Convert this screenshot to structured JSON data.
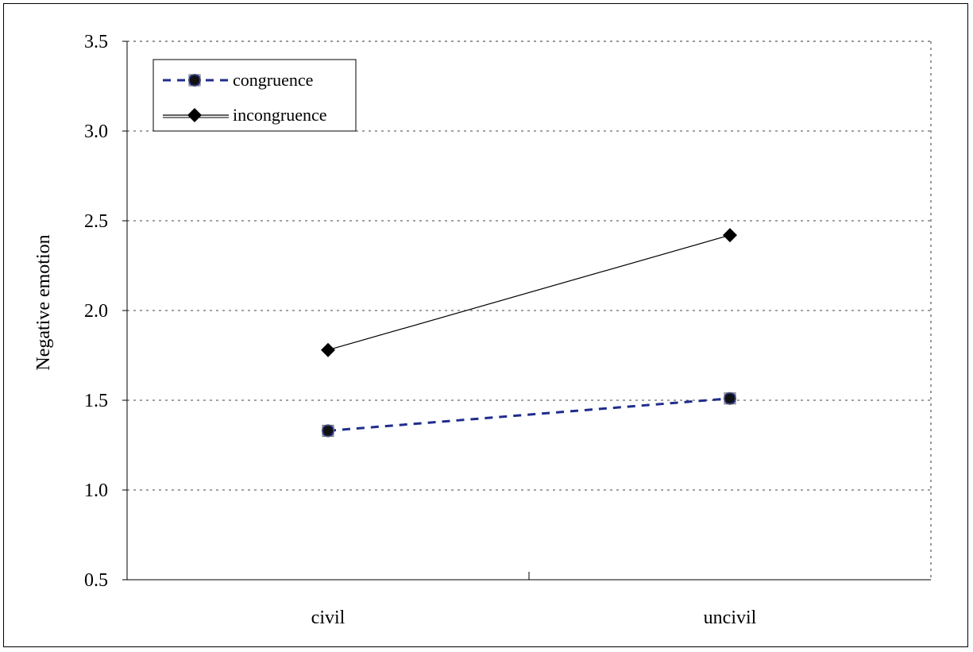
{
  "chart_data": {
    "type": "line",
    "title": "",
    "xlabel": "",
    "ylabel": "Negative emotion",
    "ylim": [
      0.5,
      3.5
    ],
    "yticks": [
      "0.5",
      "1.0",
      "1.5",
      "2.0",
      "2.5",
      "3.0",
      "3.5"
    ],
    "categories": [
      "civil",
      "uncivil"
    ],
    "grid": "horizontal dashed",
    "legend_position": "top-left",
    "series": [
      {
        "name": "congruence",
        "values": [
          1.33,
          1.51
        ],
        "color": "#1f2d8c",
        "line_style": "dashed",
        "marker": "circle"
      },
      {
        "name": "incongruence",
        "values": [
          1.78,
          2.42
        ],
        "color": "#000000",
        "line_style": "solid",
        "marker": "diamond"
      }
    ]
  }
}
